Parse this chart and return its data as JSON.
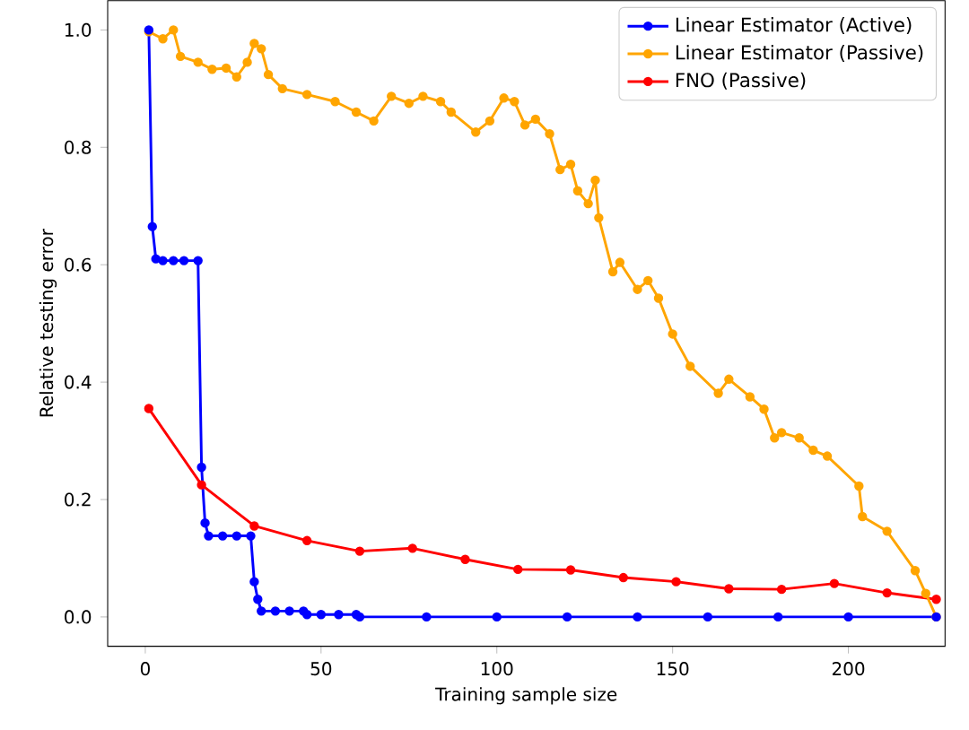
{
  "chart_data": {
    "type": "line",
    "xlabel": "Training sample size",
    "ylabel": "Relative testing error",
    "xlim": [
      -10.7,
      227.5
    ],
    "ylim": [
      -0.05,
      1.05
    ],
    "xticks": [
      0,
      50,
      100,
      150,
      200
    ],
    "yticks": [
      {
        "value": 0,
        "label": "0.0"
      },
      {
        "value": 0.2,
        "label": "0.2"
      },
      {
        "value": 0.4,
        "label": "0.4"
      },
      {
        "value": 0.6,
        "label": "0.6"
      },
      {
        "value": 0.8,
        "label": "0.8"
      },
      {
        "value": 1,
        "label": "1.0"
      }
    ],
    "legend": "top right",
    "marker": "circle",
    "grid": false,
    "series": [
      {
        "name": "Linear Estimator (Active)",
        "color": "#0000ff",
        "x": [
          1,
          2,
          3,
          5,
          8,
          11,
          15,
          16,
          17,
          18,
          22,
          26,
          30,
          31,
          32,
          33,
          37,
          41,
          45,
          46,
          50,
          55,
          60,
          61,
          80,
          100,
          120,
          140,
          160,
          180,
          200,
          225
        ],
        "values": [
          1.0,
          0.665,
          0.61,
          0.607,
          0.607,
          0.607,
          0.607,
          0.255,
          0.16,
          0.138,
          0.138,
          0.138,
          0.138,
          0.06,
          0.03,
          0.01,
          0.01,
          0.01,
          0.01,
          0.004,
          0.004,
          0.004,
          0.004,
          0.0,
          0.0,
          0.0,
          0.0,
          0.0,
          0.0,
          0.0,
          0.0,
          0.0
        ]
      },
      {
        "name": "Linear Estimator (Passive)",
        "color": "#ffa500",
        "x": [
          1,
          5,
          8,
          10,
          15,
          19,
          23,
          26,
          29,
          31,
          33,
          35,
          39,
          46,
          54,
          60,
          65,
          70,
          75,
          79,
          84,
          87,
          94,
          98,
          102,
          105,
          108,
          111,
          115,
          118,
          121,
          123,
          126,
          128,
          129,
          133,
          135,
          140,
          143,
          146,
          150,
          155,
          163,
          166,
          172,
          176,
          179,
          181,
          186,
          190,
          194,
          203,
          204,
          211,
          219,
          222,
          225
        ],
        "values": [
          0.997,
          0.985,
          1.0,
          0.955,
          0.945,
          0.933,
          0.935,
          0.92,
          0.945,
          0.977,
          0.968,
          0.924,
          0.9,
          0.89,
          0.878,
          0.86,
          0.845,
          0.887,
          0.875,
          0.887,
          0.878,
          0.86,
          0.826,
          0.845,
          0.884,
          0.878,
          0.838,
          0.848,
          0.823,
          0.762,
          0.771,
          0.726,
          0.704,
          0.744,
          0.68,
          0.588,
          0.604,
          0.558,
          0.573,
          0.543,
          0.482,
          0.427,
          0.381,
          0.405,
          0.375,
          0.354,
          0.305,
          0.314,
          0.305,
          0.284,
          0.274,
          0.223,
          0.171,
          0.146,
          0.079,
          0.04,
          0.0
        ]
      },
      {
        "name": "FNO (Passive)",
        "color": "#ff0000",
        "x": [
          1,
          16,
          31,
          46,
          61,
          76,
          91,
          106,
          121,
          136,
          151,
          166,
          181,
          196,
          211,
          225
        ],
        "values": [
          0.355,
          0.225,
          0.155,
          0.13,
          0.112,
          0.117,
          0.098,
          0.081,
          0.08,
          0.067,
          0.06,
          0.048,
          0.047,
          0.057,
          0.041,
          0.03
        ]
      }
    ]
  }
}
